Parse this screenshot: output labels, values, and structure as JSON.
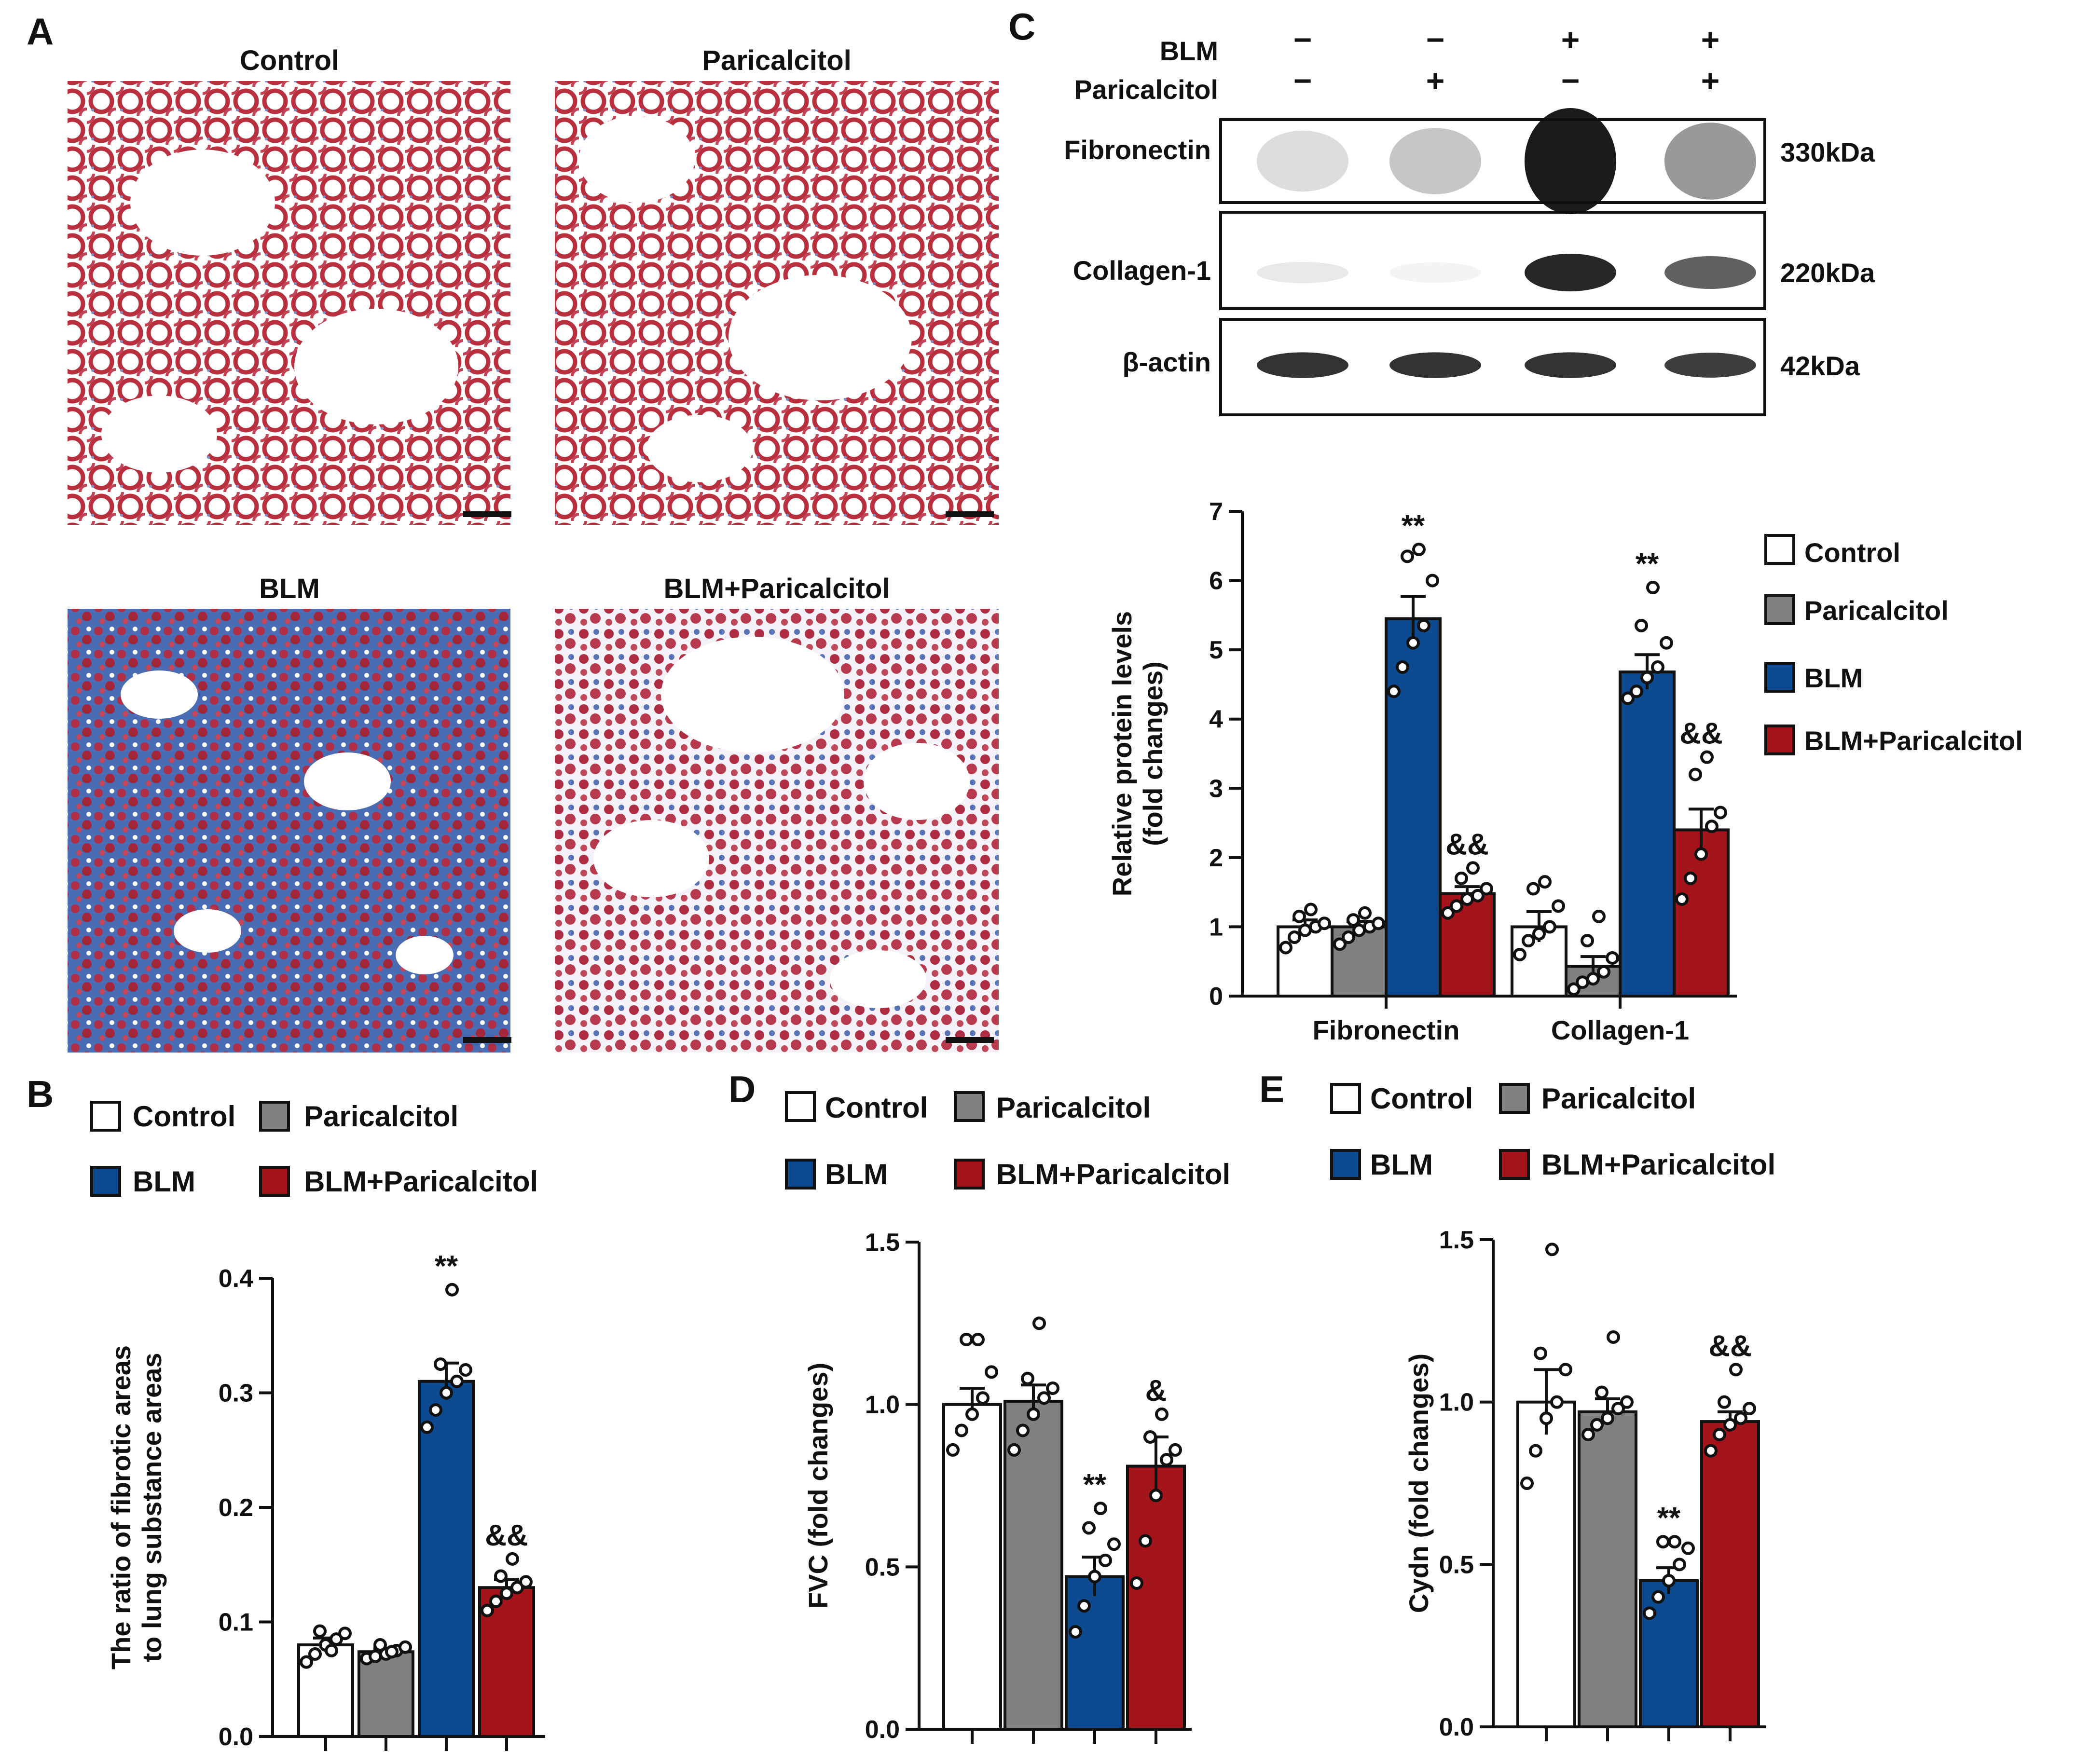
{
  "colors": {
    "control": "#ffffff",
    "paricalcitol": "#808080",
    "blm": "#0d4a8f",
    "blm_paricalcitol": "#a3141b",
    "ink": "#111111",
    "stain_red": "#b8303e",
    "stain_blue": "#3f6fb5"
  },
  "panel_letters": {
    "a": "A",
    "b": "B",
    "c": "C",
    "d": "D",
    "e": "E"
  },
  "legend": {
    "control": "Control",
    "paricalcitol": "Paricalcitol",
    "blm": "BLM",
    "blm_paricalcitol": "BLM+Paricalcitol"
  },
  "histology": {
    "control_label": "Control",
    "paricalcitol_label": "Paricalcitol",
    "blm_label": "BLM",
    "blm_paricalcitol_label": "BLM+Paricalcitol"
  },
  "western_blot": {
    "blm_row_label": "BLM",
    "paricalcitol_row_label": "Paricalcitol",
    "blm_signs": [
      "−",
      "−",
      "+",
      "+"
    ],
    "paricalcitol_signs": [
      "−",
      "+",
      "−",
      "+"
    ],
    "bands": [
      {
        "protein": "Fibronectin",
        "size": "330kDa",
        "intensities": [
          0.15,
          0.25,
          1.0,
          0.45
        ]
      },
      {
        "protein": "Collagen-1",
        "size": "220kDa",
        "intensities": [
          0.1,
          0.05,
          0.95,
          0.7
        ]
      },
      {
        "protein": "β-actin",
        "size": "42kDa",
        "intensities": [
          0.9,
          0.9,
          0.9,
          0.85
        ]
      }
    ]
  },
  "chart_data": [
    {
      "id": "C",
      "type": "bar",
      "title": "",
      "ylabel_line1": "Relative protein levels",
      "ylabel_line2": "(fold changes)",
      "ylim": [
        0,
        7
      ],
      "yticks": [
        "0",
        "1",
        "2",
        "3",
        "4",
        "5",
        "6",
        "7"
      ],
      "categories": [
        "Fibronectin",
        "Collagen-1"
      ],
      "series": [
        {
          "name": "Control",
          "values": [
            1.0,
            1.0
          ],
          "sem": [
            0.1,
            0.22
          ],
          "points": [
            [
              0.7,
              0.85,
              0.95,
              1.0,
              1.05,
              1.15,
              1.25
            ],
            [
              0.6,
              0.8,
              0.9,
              1.0,
              1.3,
              1.55,
              1.65
            ]
          ]
        },
        {
          "name": "Paricalcitol",
          "values": [
            1.0,
            0.43
          ],
          "sem": [
            0.08,
            0.14
          ],
          "points": [
            [
              0.75,
              0.85,
              0.95,
              1.0,
              1.05,
              1.1,
              1.2
            ],
            [
              0.1,
              0.2,
              0.25,
              0.35,
              0.55,
              0.8,
              1.15
            ]
          ]
        },
        {
          "name": "BLM",
          "values": [
            5.45,
            4.68
          ],
          "sem": [
            0.32,
            0.25
          ],
          "points": [
            [
              4.4,
              4.75,
              5.1,
              5.35,
              6.0,
              6.35,
              6.45
            ],
            [
              4.3,
              4.4,
              4.6,
              4.75,
              5.1,
              5.35,
              5.9
            ]
          ]
        },
        {
          "name": "BLM+Paricalcitol",
          "values": [
            1.48,
            2.4
          ],
          "sem": [
            0.1,
            0.3
          ],
          "points": [
            [
              1.2,
              1.3,
              1.4,
              1.45,
              1.55,
              1.7,
              1.85
            ],
            [
              1.4,
              1.7,
              2.05,
              2.45,
              2.65,
              3.2,
              3.45
            ]
          ]
        }
      ],
      "annotations": [
        {
          "series": 2,
          "category": 0,
          "text": "**"
        },
        {
          "series": 2,
          "category": 1,
          "text": "**"
        },
        {
          "series": 3,
          "category": 0,
          "text": "&&"
        },
        {
          "series": 3,
          "category": 1,
          "text": "&&"
        }
      ]
    },
    {
      "id": "B",
      "type": "bar",
      "title": "",
      "ylabel_line1": "The ratio of fibrotic areas",
      "ylabel_line2": "to lung substance areas",
      "ylim": [
        0,
        0.4
      ],
      "yticks": [
        "0.0",
        "0.1",
        "0.2",
        "0.3",
        "0.4"
      ],
      "categories": [
        "Control",
        "Paricalcitol",
        "BLM",
        "BLM+Paricalcitol"
      ],
      "values": [
        0.08,
        0.074,
        0.31,
        0.13
      ],
      "sem": [
        0.006,
        0.003,
        0.016,
        0.007
      ],
      "points": [
        [
          0.065,
          0.072,
          0.08,
          0.085,
          0.09,
          0.092,
          0.075
        ],
        [
          0.068,
          0.07,
          0.072,
          0.075,
          0.078,
          0.08,
          0.074
        ],
        [
          0.27,
          0.285,
          0.3,
          0.31,
          0.32,
          0.325,
          0.39
        ],
        [
          0.11,
          0.118,
          0.125,
          0.13,
          0.135,
          0.14,
          0.155
        ]
      ],
      "annotations": [
        {
          "bar": 2,
          "text": "**"
        },
        {
          "bar": 3,
          "text": "&&"
        }
      ]
    },
    {
      "id": "D",
      "type": "bar",
      "title": "",
      "ylabel_line1": "FVC (fold changes)",
      "ylabel_line2": "",
      "ylim": [
        0,
        1.5
      ],
      "yticks": [
        "0.0",
        "0.5",
        "1.0",
        "1.5"
      ],
      "categories": [
        "Control",
        "Paricalcitol",
        "BLM",
        "BLM+Paricalcitol"
      ],
      "values": [
        1.0,
        1.01,
        0.47,
        0.81
      ],
      "sem": [
        0.05,
        0.05,
        0.06,
        0.09
      ],
      "points": [
        [
          0.86,
          0.92,
          0.97,
          1.02,
          1.1,
          1.2,
          1.2
        ],
        [
          0.86,
          0.92,
          0.97,
          1.02,
          1.05,
          1.08,
          1.25
        ],
        [
          0.3,
          0.38,
          0.47,
          0.52,
          0.57,
          0.62,
          0.68
        ],
        [
          0.45,
          0.58,
          0.72,
          0.83,
          0.86,
          0.9,
          0.97
        ]
      ],
      "annotations": [
        {
          "bar": 2,
          "text": "**"
        },
        {
          "bar": 3,
          "text": "&"
        }
      ]
    },
    {
      "id": "E",
      "type": "bar",
      "title": "",
      "ylabel_line1": "Cydn (fold changes)",
      "ylabel_line2": "",
      "ylim": [
        0,
        1.5
      ],
      "yticks": [
        "0.0",
        "0.5",
        "1.0",
        "1.5"
      ],
      "categories": [
        "Control",
        "Paricalcitol",
        "BLM",
        "BLM+Paricalcitol"
      ],
      "values": [
        1.0,
        0.97,
        0.45,
        0.94
      ],
      "sem": [
        0.1,
        0.04,
        0.04,
        0.03
      ],
      "points": [
        [
          0.75,
          0.85,
          0.95,
          1.0,
          1.1,
          1.15,
          1.47
        ],
        [
          0.9,
          0.93,
          0.95,
          0.98,
          1.0,
          1.03,
          1.2
        ],
        [
          0.35,
          0.4,
          0.45,
          0.5,
          0.55,
          0.57,
          0.57
        ],
        [
          0.85,
          0.9,
          0.93,
          0.95,
          0.98,
          1.0,
          1.1
        ]
      ],
      "annotations": [
        {
          "bar": 2,
          "text": "**"
        },
        {
          "bar": 3,
          "text": "&&"
        }
      ]
    }
  ]
}
